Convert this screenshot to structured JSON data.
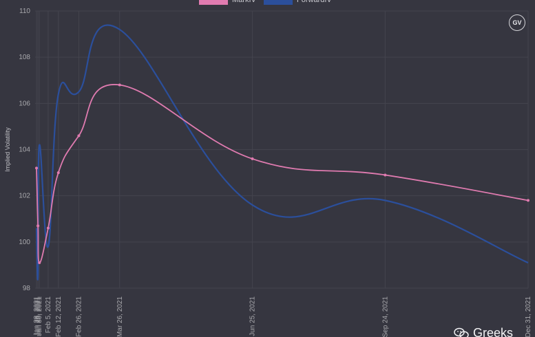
{
  "chart_data": {
    "type": "line",
    "ylabel": "Implied Volatility",
    "ylim": [
      98,
      110
    ],
    "yticks": [
      "98",
      "100",
      "102",
      "104",
      "106",
      "108",
      "110"
    ],
    "xticks": [
      "Jan 28, 2021",
      "Jan 29, 2021",
      "Jan 30, 2021",
      "Feb 5, 2021",
      "Feb 12, 2021",
      "Feb 26, 2021",
      "Mar 26, 2021",
      "Jun 25, 2021",
      "Sep 24, 2021",
      "Dec 31, 2021"
    ],
    "grid": true,
    "legend_position": "top",
    "series": [
      {
        "name": "MarkIV",
        "color": "#e07bb0",
        "x": [
          "Jan 28, 2021",
          "Jan 29, 2021",
          "Jan 30, 2021",
          "Feb 5, 2021",
          "Feb 12, 2021",
          "Feb 26, 2021",
          "Mar 26, 2021",
          "Jun 25, 2021",
          "Sep 24, 2021",
          "Dec 31, 2021"
        ],
        "values": [
          103.2,
          100.7,
          99.1,
          100.6,
          103.0,
          104.6,
          106.8,
          103.6,
          102.9,
          101.8
        ]
      },
      {
        "name": "ForwardIV",
        "color": "#2b4f9c",
        "x": [
          "Jan 28, 2021",
          "Jan 29, 2021",
          "Jan 30, 2021",
          "Feb 5, 2021",
          "Feb 12, 2021",
          "Feb 26, 2021",
          "Mar 26, 2021",
          "Jun 25, 2021",
          "Sep 24, 2021",
          "Dec 31, 2021"
        ],
        "values": [
          100.6,
          98.5,
          104.2,
          99.8,
          106.4,
          106.5,
          109.2,
          101.6,
          101.8,
          99.1
        ]
      }
    ]
  },
  "watermark": {
    "badge": "GV",
    "brand": "Greeks",
    "brand_icon": "wechat-icon"
  }
}
